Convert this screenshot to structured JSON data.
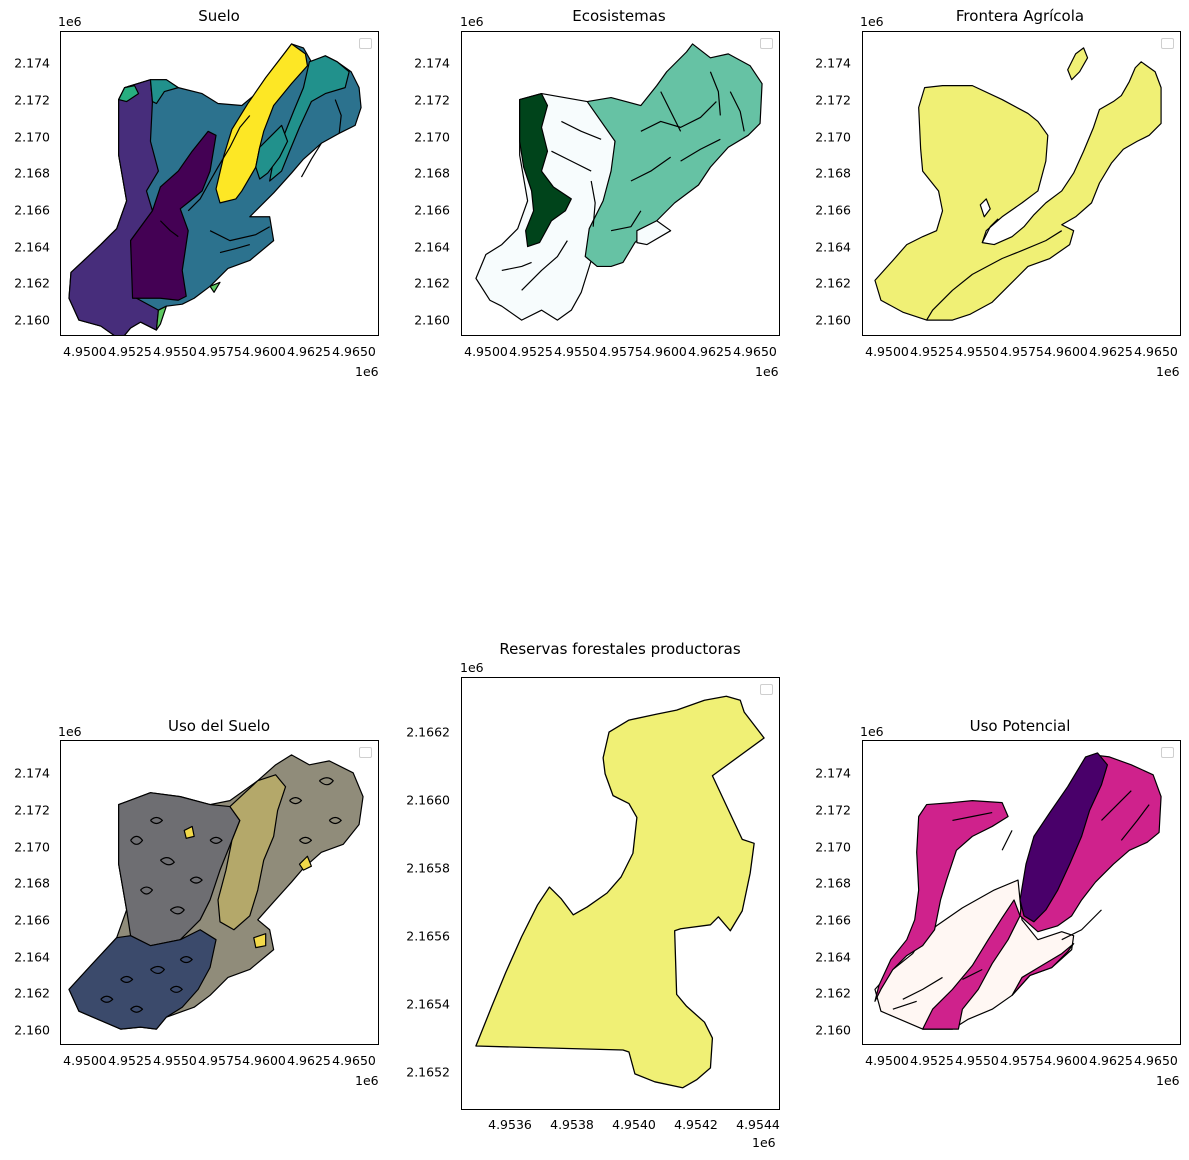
{
  "panels": {
    "suelo": {
      "title": "Suelo",
      "y_multiplier": "1e6",
      "x_multiplier": "1e6",
      "yticks": [
        "2.174",
        "2.172",
        "2.170",
        "2.168",
        "2.166",
        "2.164",
        "2.162",
        "2.160"
      ],
      "xticks": [
        "4.9500",
        "4.9525",
        "4.9550",
        "4.9575",
        "4.9600",
        "4.9625",
        "4.9650"
      ]
    },
    "ecosistemas": {
      "title": "Ecosistemas",
      "y_multiplier": "1e6",
      "x_multiplier": "1e6",
      "yticks": [
        "2.174",
        "2.172",
        "2.170",
        "2.168",
        "2.166",
        "2.164",
        "2.162",
        "2.160"
      ],
      "xticks": [
        "4.9500",
        "4.9525",
        "4.9550",
        "4.9575",
        "4.9600",
        "4.9625",
        "4.9650"
      ]
    },
    "frontera": {
      "title": "Frontera Agrícola",
      "y_multiplier": "1e6",
      "x_multiplier": "1e6",
      "yticks": [
        "2.174",
        "2.172",
        "2.170",
        "2.168",
        "2.166",
        "2.164",
        "2.162",
        "2.160"
      ],
      "xticks": [
        "4.9500",
        "4.9525",
        "4.9550",
        "4.9575",
        "4.9600",
        "4.9625",
        "4.9650"
      ]
    },
    "uso_suelo": {
      "title": "Uso del Suelo",
      "y_multiplier": "1e6",
      "x_multiplier": "1e6",
      "yticks": [
        "2.174",
        "2.172",
        "2.170",
        "2.168",
        "2.166",
        "2.164",
        "2.162",
        "2.160"
      ],
      "xticks": [
        "4.9500",
        "4.9525",
        "4.9550",
        "4.9575",
        "4.9600",
        "4.9625",
        "4.9650"
      ]
    },
    "reservas": {
      "title": "Reservas forestales productoras",
      "y_multiplier": "1e6",
      "x_multiplier": "1e6",
      "yticks": [
        "2.1662",
        "2.1660",
        "2.1658",
        "2.1656",
        "2.1654",
        "2.1652"
      ],
      "xticks": [
        "4.9536",
        "4.9538",
        "4.9540",
        "4.9542",
        "4.9544"
      ]
    },
    "uso_potencial": {
      "title": "Uso Potencial",
      "y_multiplier": "1e6",
      "x_multiplier": "1e6",
      "yticks": [
        "2.174",
        "2.172",
        "2.170",
        "2.168",
        "2.166",
        "2.164",
        "2.162",
        "2.160"
      ],
      "xticks": [
        "4.9500",
        "4.9525",
        "4.9550",
        "4.9575",
        "4.9600",
        "4.9625",
        "4.9650"
      ]
    }
  },
  "colors": {
    "viridis_dark": "#440154",
    "viridis_purple": "#472d7b",
    "viridis_blue": "#2c728e",
    "viridis_teal": "#21918c",
    "viridis_green": "#28ae80",
    "viridis_lime": "#5ec962",
    "viridis_yellow": "#fde725",
    "bugn_dark": "#00441b",
    "bugn_mid": "#66c2a4",
    "bugn_light": "#f7fcfd",
    "frontera_fill": "#f0f075",
    "cividis_dark": "#3b4a6b",
    "cividis_grey": "#6e6e72",
    "cividis_tan": "#b4a86a",
    "cividis_khaki": "#908c7a",
    "cividis_yellow": "#f2d94a",
    "rdpu_dark": "#49006a",
    "rdpu_mid": "#cf228c",
    "rdpu_light": "#fff7f3"
  }
}
